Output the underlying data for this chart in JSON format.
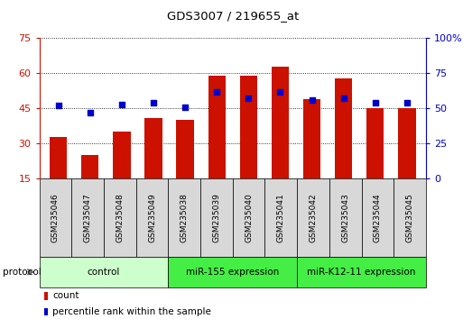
{
  "title": "GDS3007 / 219655_at",
  "samples": [
    "GSM235046",
    "GSM235047",
    "GSM235048",
    "GSM235049",
    "GSM235038",
    "GSM235039",
    "GSM235040",
    "GSM235041",
    "GSM235042",
    "GSM235043",
    "GSM235044",
    "GSM235045"
  ],
  "counts": [
    33,
    25,
    35,
    41,
    40,
    59,
    59,
    63,
    49,
    58,
    45,
    45
  ],
  "percentile_ranks": [
    52,
    47,
    53,
    54,
    51,
    62,
    57,
    62,
    56,
    57,
    54,
    54
  ],
  "ylim_left": [
    15,
    75
  ],
  "ylim_right": [
    0,
    100
  ],
  "yticks_left": [
    15,
    30,
    45,
    60,
    75
  ],
  "yticks_right": [
    0,
    25,
    50,
    75,
    100
  ],
  "bar_color": "#cc1100",
  "dot_color": "#0000cc",
  "grid_color": "#000000",
  "bg_color": "#ffffff",
  "plot_bg": "#ffffff",
  "groups": [
    {
      "label": "control",
      "start": 0,
      "end": 4,
      "color": "#ccffcc"
    },
    {
      "label": "miR-155 expression",
      "start": 4,
      "end": 8,
      "color": "#44ee44"
    },
    {
      "label": "miR-K12-11 expression",
      "start": 8,
      "end": 12,
      "color": "#44ee44"
    }
  ],
  "legend_count_label": "count",
  "legend_pct_label": "percentile rank within the sample",
  "protocol_label": "protocol",
  "left_label_color": "#cc1100",
  "right_label_color": "#0000cc",
  "bar_width": 0.55,
  "figsize": [
    5.13,
    3.54
  ],
  "dpi": 100
}
